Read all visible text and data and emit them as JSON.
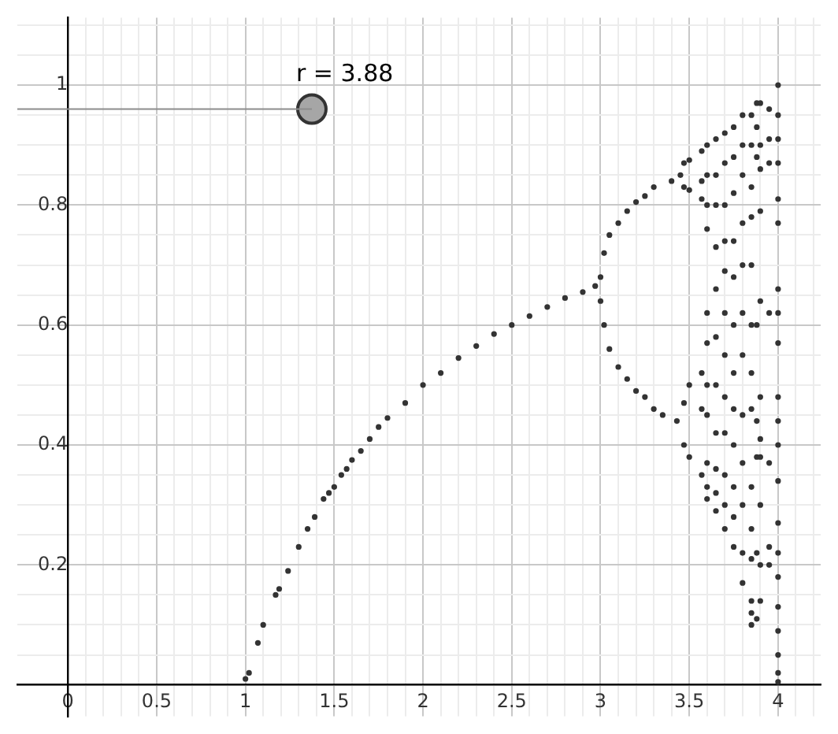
{
  "chart_data": {
    "type": "scatter",
    "marker": "circle",
    "grid": true,
    "xlim": [
      -0.285,
      4.24
    ],
    "ylim": [
      -0.0525,
      1.1125
    ],
    "xticks": [
      0,
      {
        "value": 0.1,
        "label": null
      },
      {
        "value": 0.2,
        "label": null
      },
      {
        "value": 0.3,
        "label": null
      },
      {
        "value": 0.4,
        "label": null
      },
      0.5,
      {
        "value": 0.6,
        "label": null
      },
      {
        "value": 0.7,
        "label": null
      },
      {
        "value": 0.8,
        "label": null
      },
      {
        "value": 0.9,
        "label": null
      },
      1,
      {
        "value": 1.1,
        "label": null
      },
      {
        "value": 1.2,
        "label": null
      },
      {
        "value": 1.3,
        "label": null
      },
      {
        "value": 1.4,
        "label": null
      },
      1.5,
      {
        "value": 1.6,
        "label": null
      },
      {
        "value": 1.7,
        "label": null
      },
      {
        "value": 1.8,
        "label": null
      },
      {
        "value": 1.9,
        "label": null
      },
      2,
      {
        "value": 2.1,
        "label": null
      },
      {
        "value": 2.2,
        "label": null
      },
      {
        "value": 2.3,
        "label": null
      },
      {
        "value": 2.4,
        "label": null
      },
      2.5,
      {
        "value": 2.6,
        "label": null
      },
      {
        "value": 2.7,
        "label": null
      },
      {
        "value": 2.8,
        "label": null
      },
      {
        "value": 2.9,
        "label": null
      },
      3,
      {
        "value": 3.1,
        "label": null
      },
      {
        "value": 3.2,
        "label": null
      },
      {
        "value": 3.3,
        "label": null
      },
      {
        "value": 3.4,
        "label": null
      },
      3.5,
      {
        "value": 3.6,
        "label": null
      },
      {
        "value": 3.7,
        "label": null
      },
      {
        "value": 3.8,
        "label": null
      },
      {
        "value": 3.9,
        "label": null
      },
      4,
      {
        "value": 4.1,
        "label": null
      },
      {
        "value": 4.2,
        "label": null
      }
    ],
    "yticks": [
      {
        "value": 0,
        "label": null
      },
      {
        "value": 0.05,
        "label": null
      },
      {
        "value": 0.1,
        "label": null
      },
      {
        "value": 0.15,
        "label": null
      },
      0.2,
      {
        "value": 0.25,
        "label": null
      },
      {
        "value": 0.3,
        "label": null
      },
      {
        "value": 0.35,
        "label": null
      },
      0.4,
      {
        "value": 0.45,
        "label": null
      },
      {
        "value": 0.5,
        "label": null
      },
      {
        "value": 0.55,
        "label": null
      },
      0.6,
      {
        "value": 0.65,
        "label": null
      },
      {
        "value": 0.7,
        "label": null
      },
      {
        "value": 0.75,
        "label": null
      },
      0.8,
      {
        "value": 0.85,
        "label": null
      },
      {
        "value": 0.9,
        "label": null
      },
      {
        "value": 0.95,
        "label": null
      },
      1,
      {
        "value": 1.05,
        "label": null
      },
      {
        "value": 1.1,
        "label": null
      }
    ],
    "annotations": [
      {
        "text": "r = 3.88",
        "x": 1.374,
        "y": 0.96
      }
    ],
    "series": [
      {
        "color": "#333333",
        "x": [
          1.0,
          1.02,
          1.07,
          1.1,
          1.17,
          1.19,
          1.24,
          1.3,
          1.35,
          1.39,
          1.44,
          1.47,
          1.5,
          1.54,
          1.57,
          1.6,
          1.65,
          1.7,
          1.75,
          1.8,
          1.9,
          2.0,
          2.1,
          2.2,
          2.3,
          2.4,
          2.5,
          2.6,
          2.7,
          2.8,
          2.9,
          2.97,
          3.0,
          3.02,
          3.05,
          3.1,
          3.15,
          3.2,
          3.25,
          3.3,
          3.4,
          3.45,
          3.0,
          3.02,
          3.05,
          3.1,
          3.15,
          3.2,
          3.25,
          3.3,
          3.35,
          3.43,
          3.47,
          3.5,
          3.47,
          3.5,
          3.47,
          3.5,
          3.47,
          3.5,
          3.57,
          3.57,
          3.57,
          3.57,
          3.57,
          3.57,
          3.6,
          3.6,
          3.6,
          3.6,
          3.6,
          3.6,
          3.6,
          3.6,
          3.6,
          3.6,
          3.6,
          3.65,
          3.65,
          3.65,
          3.65,
          3.65,
          3.65,
          3.65,
          3.65,
          3.65,
          3.65,
          3.65,
          3.7,
          3.7,
          3.7,
          3.7,
          3.7,
          3.7,
          3.7,
          3.7,
          3.7,
          3.7,
          3.7,
          3.7,
          3.75,
          3.75,
          3.75,
          3.75,
          3.75,
          3.75,
          3.75,
          3.75,
          3.75,
          3.75,
          3.75,
          3.75,
          3.8,
          3.8,
          3.8,
          3.8,
          3.8,
          3.8,
          3.8,
          3.8,
          3.8,
          3.8,
          3.8,
          3.8,
          3.85,
          3.85,
          3.85,
          3.85,
          3.85,
          3.85,
          3.85,
          3.85,
          3.85,
          3.85,
          3.85,
          3.85,
          3.85,
          3.85,
          3.88,
          3.88,
          3.88,
          3.88,
          3.88,
          3.88,
          3.88,
          3.88,
          3.9,
          3.9,
          3.9,
          3.9,
          3.9,
          3.9,
          3.9,
          3.9,
          3.9,
          3.9,
          3.9,
          3.95,
          3.95,
          3.95,
          3.95,
          3.95,
          3.95,
          3.95,
          4,
          4,
          4,
          4,
          4,
          4,
          4,
          4,
          4,
          4,
          4,
          4,
          4,
          4,
          4,
          4,
          4,
          4,
          4,
          4,
          4
        ],
        "values": [
          0.01,
          0.02,
          0.07,
          0.1,
          0.15,
          0.16,
          0.19,
          0.23,
          0.26,
          0.28,
          0.31,
          0.32,
          0.33,
          0.35,
          0.36,
          0.375,
          0.39,
          0.41,
          0.43,
          0.445,
          0.47,
          0.5,
          0.52,
          0.545,
          0.565,
          0.585,
          0.6,
          0.615,
          0.63,
          0.645,
          0.655,
          0.665,
          0.68,
          0.72,
          0.75,
          0.77,
          0.79,
          0.805,
          0.815,
          0.83,
          0.84,
          0.85,
          0.64,
          0.6,
          0.56,
          0.53,
          0.51,
          0.49,
          0.48,
          0.46,
          0.45,
          0.44,
          0.87,
          0.875,
          0.83,
          0.825,
          0.47,
          0.5,
          0.4,
          0.38,
          0.89,
          0.84,
          0.81,
          0.52,
          0.46,
          0.35,
          0.9,
          0.85,
          0.8,
          0.76,
          0.62,
          0.57,
          0.5,
          0.45,
          0.37,
          0.33,
          0.31,
          0.91,
          0.85,
          0.8,
          0.73,
          0.66,
          0.58,
          0.5,
          0.42,
          0.36,
          0.32,
          0.29,
          0.92,
          0.87,
          0.8,
          0.74,
          0.69,
          0.62,
          0.55,
          0.48,
          0.42,
          0.35,
          0.3,
          0.26,
          0.93,
          0.88,
          0.82,
          0.74,
          0.68,
          0.6,
          0.52,
          0.46,
          0.4,
          0.33,
          0.28,
          0.23,
          0.95,
          0.9,
          0.85,
          0.77,
          0.7,
          0.62,
          0.55,
          0.45,
          0.37,
          0.3,
          0.22,
          0.17,
          0.95,
          0.9,
          0.83,
          0.78,
          0.7,
          0.6,
          0.52,
          0.46,
          0.33,
          0.26,
          0.21,
          0.14,
          0.12,
          0.1,
          0.97,
          0.93,
          0.88,
          0.6,
          0.44,
          0.38,
          0.22,
          0.11,
          0.97,
          0.9,
          0.86,
          0.79,
          0.64,
          0.48,
          0.41,
          0.38,
          0.3,
          0.2,
          0.14,
          0.96,
          0.91,
          0.87,
          0.62,
          0.37,
          0.23,
          0.2,
          1.0,
          0.95,
          0.91,
          0.87,
          0.81,
          0.77,
          0.66,
          0.62,
          0.57,
          0.48,
          0.44,
          0.4,
          0.34,
          0.27,
          0.22,
          0.18,
          0.13,
          0.09,
          0.05,
          0.02,
          0.005
        ]
      },
      {
        "type": "line",
        "color": "#8c8c8c",
        "marker": "none",
        "x": [
          -0.285,
          1.374
        ],
        "values": [
          0.96,
          0.96
        ]
      },
      {
        "type": "scatter",
        "color": "#a6a6a6",
        "x": [
          1.374
        ],
        "values": [
          0.96
        ]
      }
    ]
  }
}
